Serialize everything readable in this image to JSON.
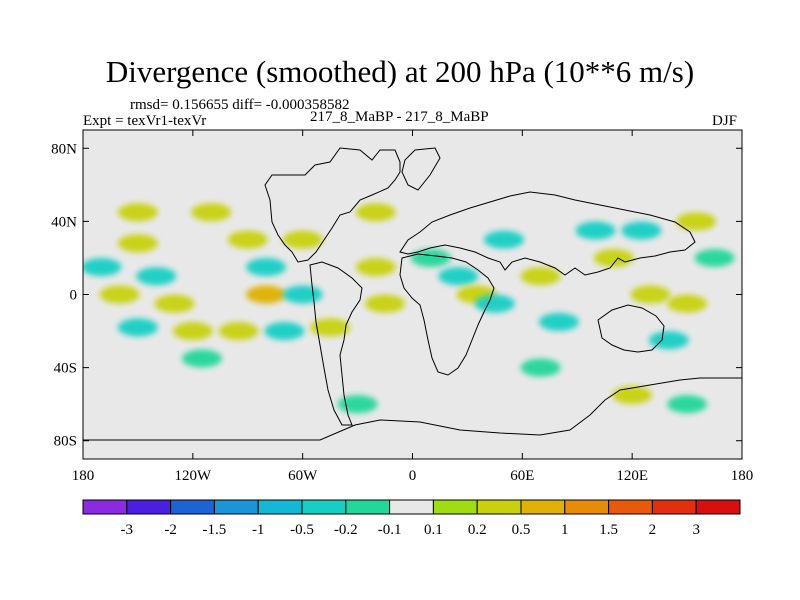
{
  "header": {
    "title": "Divergence (smoothed) at 200 hPa (10**6 m/s)",
    "rmsd_line": "rmsd= 0.156655 diff= -0.000358582",
    "expt_line": "Expt = texVr1-texVr",
    "case_line": "217_8_MaBP - 217_8_MaBP",
    "season": "DJF"
  },
  "chart_data": {
    "type": "heatmap",
    "title": "Divergence (smoothed) at 200 hPa (10**6 m/s)",
    "projection": "cylindrical equidistant (lon-lat)",
    "xlim": [
      -180,
      180
    ],
    "ylim": [
      -90,
      90
    ],
    "x_ticks": [
      {
        "value": -180,
        "label": "180"
      },
      {
        "value": -120,
        "label": "120W"
      },
      {
        "value": -60,
        "label": "60W"
      },
      {
        "value": 0,
        "label": "0"
      },
      {
        "value": 60,
        "label": "60E"
      },
      {
        "value": 120,
        "label": "120E"
      },
      {
        "value": 180,
        "label": "180"
      }
    ],
    "y_ticks": [
      {
        "value": 80,
        "label": "80N"
      },
      {
        "value": 40,
        "label": "40N"
      },
      {
        "value": 0,
        "label": "0"
      },
      {
        "value": -40,
        "label": "40S"
      },
      {
        "value": -80,
        "label": "80S"
      }
    ],
    "colorbar": {
      "levels": [
        "-3",
        "-2",
        "-1.5",
        "-1",
        "-0.5",
        "-0.2",
        "-0.1",
        "0.1",
        "0.2",
        "0.5",
        "1",
        "1.5",
        "2",
        "3"
      ],
      "colors": [
        "#8a2be2",
        "#4b1fe0",
        "#1e63d6",
        "#1a96d8",
        "#12b8d4",
        "#15cfc5",
        "#22d79a",
        "#e8e8e8",
        "#9fdc10",
        "#c8d20a",
        "#e0b106",
        "#e88c08",
        "#e85a0a",
        "#e2300f",
        "#d80f0f"
      ]
    },
    "features": [
      {
        "lon": -150,
        "lat": 45,
        "value": 0.3
      },
      {
        "lon": -150,
        "lat": 28,
        "value": 0.4
      },
      {
        "lon": -170,
        "lat": 15,
        "value": -0.3
      },
      {
        "lon": -140,
        "lat": 10,
        "value": -0.4
      },
      {
        "lon": -160,
        "lat": 0,
        "value": 0.3
      },
      {
        "lon": -130,
        "lat": -5,
        "value": 0.2
      },
      {
        "lon": -150,
        "lat": -18,
        "value": -0.4
      },
      {
        "lon": -120,
        "lat": -20,
        "value": 0.2
      },
      {
        "lon": -110,
        "lat": 45,
        "value": 0.2
      },
      {
        "lon": -90,
        "lat": 30,
        "value": 0.3
      },
      {
        "lon": -80,
        "lat": 15,
        "value": -0.3
      },
      {
        "lon": -80,
        "lat": 0,
        "value": 0.5
      },
      {
        "lon": -60,
        "lat": 0,
        "value": -0.4
      },
      {
        "lon": -70,
        "lat": -20,
        "value": -0.4
      },
      {
        "lon": -95,
        "lat": -20,
        "value": 0.3
      },
      {
        "lon": -115,
        "lat": -35,
        "value": -0.2
      },
      {
        "lon": -45,
        "lat": -18,
        "value": 0.2
      },
      {
        "lon": -60,
        "lat": 30,
        "value": 0.2
      },
      {
        "lon": -20,
        "lat": 45,
        "value": 0.2
      },
      {
        "lon": -20,
        "lat": 15,
        "value": 0.2
      },
      {
        "lon": -15,
        "lat": -5,
        "value": 0.3
      },
      {
        "lon": -30,
        "lat": -60,
        "value": -0.2
      },
      {
        "lon": 10,
        "lat": 20,
        "value": -0.2
      },
      {
        "lon": 25,
        "lat": 10,
        "value": -0.3
      },
      {
        "lon": 35,
        "lat": 0,
        "value": 0.4
      },
      {
        "lon": 45,
        "lat": -5,
        "value": -0.3
      },
      {
        "lon": 50,
        "lat": 30,
        "value": -0.3
      },
      {
        "lon": 70,
        "lat": 10,
        "value": 0.2
      },
      {
        "lon": 80,
        "lat": -15,
        "value": -0.3
      },
      {
        "lon": 70,
        "lat": -40,
        "value": -0.2
      },
      {
        "lon": 100,
        "lat": 35,
        "value": -0.3
      },
      {
        "lon": 125,
        "lat": 35,
        "value": -0.3
      },
      {
        "lon": 110,
        "lat": 20,
        "value": 0.3
      },
      {
        "lon": 130,
        "lat": 0,
        "value": 0.4
      },
      {
        "lon": 150,
        "lat": -5,
        "value": 0.3
      },
      {
        "lon": 140,
        "lat": -25,
        "value": -0.3
      },
      {
        "lon": 155,
        "lat": 40,
        "value": 0.2
      },
      {
        "lon": 165,
        "lat": 20,
        "value": -0.2
      },
      {
        "lon": 120,
        "lat": -55,
        "value": 0.2
      },
      {
        "lon": 150,
        "lat": -60,
        "value": -0.2
      }
    ]
  }
}
